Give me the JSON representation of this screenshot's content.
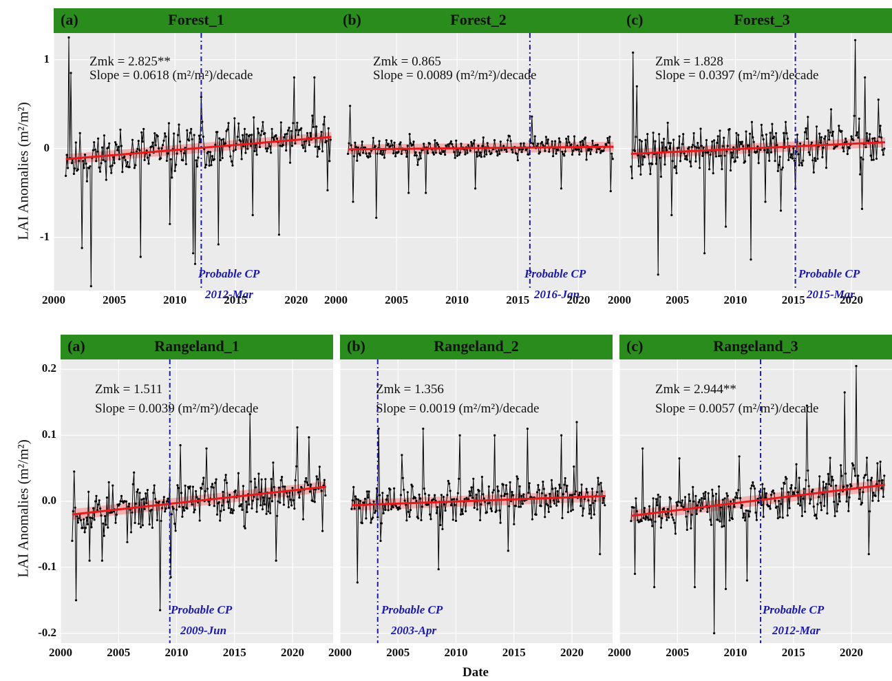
{
  "figure": {
    "ylabel": "LAI Anomalies (m²/m²)",
    "xlabel": "Date",
    "x_ticks": [
      "2000",
      "2005",
      "2010",
      "2015",
      "2020"
    ],
    "colors": {
      "strip": "#2a8c1d",
      "panel_bg": "#ebebeb",
      "series": "#000000",
      "trend": "#e41a1c",
      "changepoint": "#1a1aa8"
    }
  },
  "chart_data": [
    {
      "type": "line",
      "letter": "(a)",
      "title": "Forest_1",
      "zmk": "Zmk = 2.825**",
      "slope": "Slope = 0.0618 (m²/m²)/decade",
      "cp_label": "Probable CP",
      "cp_date": "2012-Mar",
      "cp_x": 2012.17,
      "trend": {
        "x": [
          2001.0,
          2022.9
        ],
        "y": [
          -0.12,
          0.13
        ]
      },
      "xlim": [
        2000,
        2023.5
      ],
      "ylim": [
        -1.6,
        1.3
      ],
      "y_ticks": [
        1,
        0,
        -1
      ],
      "y_tick_labels": [
        "1",
        "0",
        "-1"
      ],
      "series": [
        {
          "start": 2001.0,
          "end": 2022.9,
          "seed": 11,
          "amp": 0.22,
          "spikes": [
            [
              2001.25,
              1.25
            ],
            [
              2001.4,
              0.85
            ],
            [
              2003.1,
              -1.55
            ],
            [
              2002.3,
              -1.12
            ],
            [
              2007.2,
              -1.22
            ],
            [
              2009.6,
              -0.85
            ],
            [
              2011.5,
              -1.18
            ],
            [
              2011.7,
              -1.3
            ],
            [
              2012.2,
              0.58
            ],
            [
              2013.6,
              -1.08
            ],
            [
              2018.6,
              -0.97
            ],
            [
              2019.8,
              0.8
            ],
            [
              2021.5,
              0.8
            ],
            [
              2022.6,
              -0.47
            ],
            [
              2016.4,
              -0.75
            ]
          ]
        }
      ]
    },
    {
      "type": "line",
      "letter": "(b)",
      "title": "Forest_2",
      "zmk": "Zmk = 0.865",
      "slope": "Slope = 0.0089 (m²/m²)/decade",
      "cp_label": "Probable CP",
      "cp_date": "2016-Jan",
      "cp_x": 2016.0,
      "trend": {
        "x": [
          2001.0,
          2022.9
        ],
        "y": [
          -0.01,
          0.02
        ]
      },
      "xlim": [
        2000,
        2023.5
      ],
      "ylim": [
        -1.6,
        1.3
      ],
      "y_ticks": [
        1,
        0,
        -1
      ],
      "y_tick_labels": [
        "1",
        "0",
        "-1"
      ],
      "series": [
        {
          "start": 2001.0,
          "end": 2022.9,
          "seed": 23,
          "amp": 0.1,
          "spikes": [
            [
              2001.2,
              0.48
            ],
            [
              2001.4,
              -0.6
            ],
            [
              2003.3,
              -0.78
            ],
            [
              2006.0,
              -0.5
            ],
            [
              2007.4,
              -0.5
            ],
            [
              2011.5,
              -0.45
            ],
            [
              2016.2,
              0.36
            ],
            [
              2018.6,
              -0.45
            ],
            [
              2022.7,
              -0.48
            ]
          ]
        }
      ]
    },
    {
      "type": "line",
      "letter": "(c)",
      "title": "Forest_3",
      "zmk": "Zmk = 1.828",
      "slope": "Slope = 0.0397 (m²/m²)/decade",
      "cp_label": "Probable CP",
      "cp_date": "2015-Mar",
      "cp_x": 2015.17,
      "trend": {
        "x": [
          2001.0,
          2022.9
        ],
        "y": [
          -0.06,
          0.07
        ]
      },
      "xlim": [
        2000,
        2023.5
      ],
      "ylim": [
        -1.6,
        1.3
      ],
      "y_ticks": [
        1,
        0,
        -1
      ],
      "y_tick_labels": [
        "1",
        "0",
        "-1"
      ],
      "series": [
        {
          "start": 2001.0,
          "end": 2022.9,
          "seed": 37,
          "amp": 0.22,
          "spikes": [
            [
              2001.2,
              1.08
            ],
            [
              2001.5,
              0.7
            ],
            [
              2003.3,
              -1.42
            ],
            [
              2004.5,
              -0.75
            ],
            [
              2007.3,
              -1.18
            ],
            [
              2009.2,
              -0.88
            ],
            [
              2011.3,
              -1.25
            ],
            [
              2012.6,
              -0.6
            ],
            [
              2013.9,
              -0.7
            ],
            [
              2015.2,
              -0.45
            ],
            [
              2020.3,
              1.22
            ],
            [
              2021.2,
              0.8
            ],
            [
              2020.9,
              -0.68
            ],
            [
              2022.3,
              0.55
            ]
          ]
        }
      ]
    },
    {
      "type": "line",
      "letter": "(a)",
      "title": "Rangeland_1",
      "zmk": "Zmk = 1.511",
      "slope": "Slope = 0.0039 (m²/m²)/decade",
      "cp_label": "Probable CP",
      "cp_date": "2009-Jun",
      "cp_x": 2009.42,
      "trend": {
        "x": [
          2001.0,
          2022.9
        ],
        "y": [
          -0.02,
          0.022
        ]
      },
      "xlim": [
        2000,
        2023.5
      ],
      "ylim": [
        -0.215,
        0.215
      ],
      "y_ticks": [
        0.2,
        0.1,
        0.0,
        -0.1,
        -0.2
      ],
      "y_tick_labels": [
        "0.2",
        "0.1",
        "0.0",
        "-0.1",
        "-0.2"
      ],
      "series": [
        {
          "start": 2001.0,
          "end": 2022.9,
          "seed": 53,
          "amp": 0.03,
          "spikes": [
            [
              2001.3,
              -0.15
            ],
            [
              2001.2,
              0.045
            ],
            [
              2002.5,
              -0.09
            ],
            [
              2003.6,
              -0.09
            ],
            [
              2008.6,
              -0.165
            ],
            [
              2009.5,
              -0.115
            ],
            [
              2010.3,
              0.085
            ],
            [
              2012.6,
              0.08
            ],
            [
              2016.3,
              0.132
            ],
            [
              2018.6,
              -0.09
            ],
            [
              2020.4,
              0.112
            ],
            [
              2021.4,
              0.097
            ],
            [
              2022.6,
              -0.045
            ]
          ]
        }
      ]
    },
    {
      "type": "line",
      "letter": "(b)",
      "title": "Rangeland_2",
      "zmk": "Zmk = 1.356",
      "slope": "Slope = 0.0019 (m²/m²)/decade",
      "cp_label": "Probable CP",
      "cp_date": "2003-Apr",
      "cp_x": 2003.25,
      "trend": {
        "x": [
          2001.0,
          2022.9
        ],
        "y": [
          -0.006,
          0.008
        ]
      },
      "xlim": [
        2000,
        2023.5
      ],
      "ylim": [
        -0.215,
        0.215
      ],
      "y_ticks": [
        0.2,
        0.1,
        0.0,
        -0.1,
        -0.2
      ],
      "y_tick_labels": [
        "0.2",
        "0.1",
        "0.0",
        "-0.1",
        "-0.2"
      ],
      "series": [
        {
          "start": 2001.0,
          "end": 2022.9,
          "seed": 71,
          "amp": 0.025,
          "spikes": [
            [
              2001.5,
              -0.123
            ],
            [
              2003.3,
              0.11
            ],
            [
              2003.5,
              -0.06
            ],
            [
              2005.3,
              0.07
            ],
            [
              2007.2,
              0.11
            ],
            [
              2008.5,
              -0.103
            ],
            [
              2010.3,
              0.1
            ],
            [
              2013.3,
              0.1
            ],
            [
              2014.5,
              -0.075
            ],
            [
              2016.2,
              0.11
            ],
            [
              2019.1,
              0.1
            ],
            [
              2020.4,
              0.12
            ],
            [
              2022.4,
              -0.08
            ]
          ]
        }
      ]
    },
    {
      "type": "line",
      "letter": "(c)",
      "title": "Rangeland_3",
      "zmk": "Zmk = 2.944**",
      "slope": "Slope = 0.0057 (m²/m²)/decade",
      "cp_label": "Probable CP",
      "cp_date": "2012-Mar",
      "cp_x": 2012.17,
      "trend": {
        "x": [
          2001.0,
          2022.9
        ],
        "y": [
          -0.022,
          0.025
        ]
      },
      "xlim": [
        2000,
        2023.5
      ],
      "ylim": [
        -0.215,
        0.215
      ],
      "y_ticks": [
        0.2,
        0.1,
        0.0,
        -0.1,
        -0.2
      ],
      "y_tick_labels": [
        "0.2",
        "0.1",
        "0.0",
        "-0.1",
        "-0.2"
      ],
      "series": [
        {
          "start": 2001.0,
          "end": 2022.9,
          "seed": 89,
          "amp": 0.03,
          "spikes": [
            [
              2001.3,
              -0.11
            ],
            [
              2002.0,
              0.08
            ],
            [
              2003.0,
              -0.13
            ],
            [
              2005.2,
              0.065
            ],
            [
              2006.5,
              -0.13
            ],
            [
              2008.2,
              -0.2
            ],
            [
              2009.2,
              -0.133
            ],
            [
              2010.3,
              0.068
            ],
            [
              2011.0,
              -0.12
            ],
            [
              2016.2,
              0.145
            ],
            [
              2019.4,
              0.165
            ],
            [
              2020.4,
              0.205
            ],
            [
              2021.5,
              -0.08
            ],
            [
              2022.5,
              0.06
            ]
          ]
        }
      ]
    }
  ]
}
